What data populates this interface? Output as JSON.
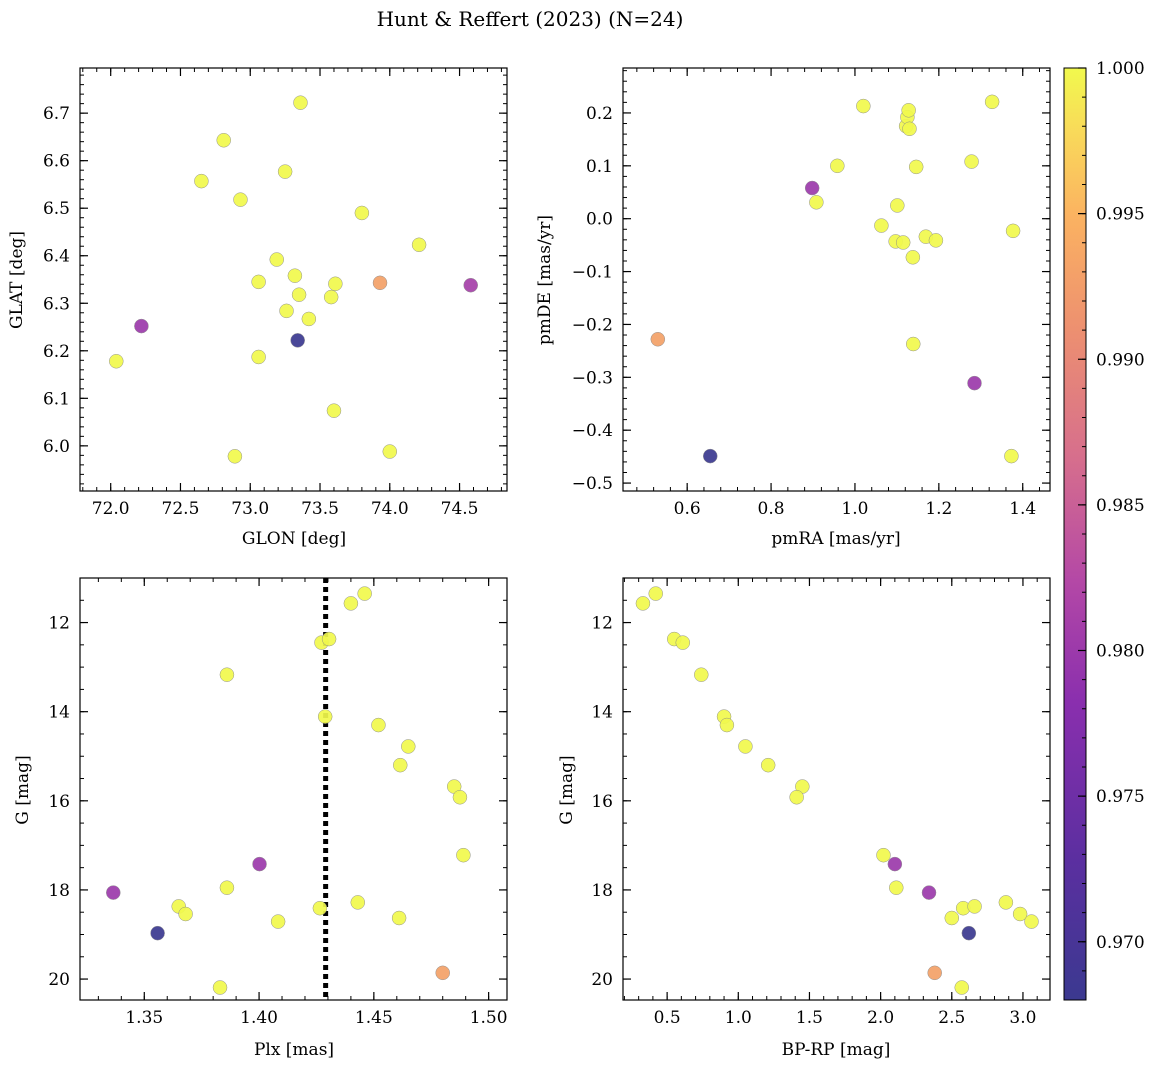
{
  "chart_data": {
    "type": "scatter",
    "title": "Hunt & Reffert (2023) (N=24)",
    "colorbar": {
      "colormap": "plasma",
      "min": 0.968,
      "max": 1.0,
      "ticks": [
        0.97,
        0.975,
        0.98,
        0.985,
        0.99,
        0.995,
        1.0
      ],
      "tick_labels": [
        "0.970",
        "0.975",
        "0.980",
        "0.985",
        "0.990",
        "0.995",
        "1.000"
      ]
    },
    "panels": [
      {
        "id": "sky",
        "xlabel": "GLON [deg]",
        "ylabel": "GLAT [deg]",
        "xlim": [
          71.78,
          74.84
        ],
        "ylim": [
          5.905,
          6.795
        ],
        "y_inverted": false,
        "xticks": [
          72.0,
          72.5,
          73.0,
          73.5,
          74.0,
          74.5
        ],
        "xtick_labels": [
          "72.0",
          "72.5",
          "73.0",
          "73.5",
          "74.0",
          "74.5"
        ],
        "yticks": [
          6.0,
          6.1,
          6.2,
          6.3,
          6.4,
          6.5,
          6.6,
          6.7
        ],
        "ytick_labels": [
          "6.0",
          "6.1",
          "6.2",
          "6.3",
          "6.4",
          "6.5",
          "6.6",
          "6.7"
        ],
        "points": [
          {
            "x": 72.04,
            "y": 6.178,
            "c": 1.0
          },
          {
            "x": 72.22,
            "y": 6.252,
            "c": 0.98
          },
          {
            "x": 72.65,
            "y": 6.557,
            "c": 1.0
          },
          {
            "x": 72.81,
            "y": 6.643,
            "c": 1.0
          },
          {
            "x": 72.89,
            "y": 5.978,
            "c": 1.0
          },
          {
            "x": 72.93,
            "y": 6.518,
            "c": 1.0
          },
          {
            "x": 73.06,
            "y": 6.187,
            "c": 1.0
          },
          {
            "x": 73.06,
            "y": 6.345,
            "c": 1.0
          },
          {
            "x": 73.19,
            "y": 6.392,
            "c": 1.0
          },
          {
            "x": 73.25,
            "y": 6.577,
            "c": 1.0
          },
          {
            "x": 73.26,
            "y": 6.284,
            "c": 1.0
          },
          {
            "x": 73.32,
            "y": 6.358,
            "c": 1.0
          },
          {
            "x": 73.34,
            "y": 6.222,
            "c": 0.968
          },
          {
            "x": 73.35,
            "y": 6.318,
            "c": 1.0
          },
          {
            "x": 73.36,
            "y": 6.722,
            "c": 1.0
          },
          {
            "x": 73.42,
            "y": 6.267,
            "c": 1.0
          },
          {
            "x": 73.58,
            "y": 6.313,
            "c": 1.0
          },
          {
            "x": 73.6,
            "y": 6.074,
            "c": 1.0
          },
          {
            "x": 73.61,
            "y": 6.341,
            "c": 1.0
          },
          {
            "x": 73.8,
            "y": 6.49,
            "c": 1.0
          },
          {
            "x": 73.93,
            "y": 6.343,
            "c": 0.993
          },
          {
            "x": 74.0,
            "y": 5.988,
            "c": 1.0
          },
          {
            "x": 74.21,
            "y": 6.423,
            "c": 1.0
          },
          {
            "x": 74.58,
            "y": 6.338,
            "c": 0.981
          }
        ]
      },
      {
        "id": "pm",
        "xlabel": "pmRA [mas/yr]",
        "ylabel": "pmDE [mas/yr]",
        "xlim": [
          0.447,
          1.465
        ],
        "ylim": [
          -0.515,
          0.285
        ],
        "y_inverted": false,
        "xticks": [
          0.6,
          0.8,
          1.0,
          1.2,
          1.4
        ],
        "xtick_labels": [
          "0.6",
          "0.8",
          "1.0",
          "1.2",
          "1.4"
        ],
        "yticks": [
          -0.5,
          -0.4,
          -0.3,
          -0.2,
          -0.1,
          0.0,
          0.1,
          0.2
        ],
        "ytick_labels": [
          "−0.5",
          "−0.4",
          "−0.3",
          "−0.2",
          "−0.1",
          "0.0",
          "0.1",
          "0.2"
        ],
        "points": [
          {
            "x": 0.53,
            "y": -0.228,
            "c": 0.993
          },
          {
            "x": 0.655,
            "y": -0.449,
            "c": 0.968
          },
          {
            "x": 0.898,
            "y": 0.058,
            "c": 0.98
          },
          {
            "x": 0.908,
            "y": 0.031,
            "c": 1.0
          },
          {
            "x": 0.958,
            "y": 0.1,
            "c": 1.0
          },
          {
            "x": 1.02,
            "y": 0.213,
            "c": 1.0
          },
          {
            "x": 1.063,
            "y": -0.013,
            "c": 1.0
          },
          {
            "x": 1.097,
            "y": -0.043,
            "c": 1.0
          },
          {
            "x": 1.101,
            "y": 0.025,
            "c": 1.0
          },
          {
            "x": 1.115,
            "y": -0.045,
            "c": 1.0
          },
          {
            "x": 1.122,
            "y": 0.175,
            "c": 1.0
          },
          {
            "x": 1.125,
            "y": 0.192,
            "c": 1.0
          },
          {
            "x": 1.128,
            "y": 0.205,
            "c": 1.0
          },
          {
            "x": 1.13,
            "y": 0.17,
            "c": 1.0
          },
          {
            "x": 1.138,
            "y": -0.073,
            "c": 1.0
          },
          {
            "x": 1.139,
            "y": -0.237,
            "c": 1.0
          },
          {
            "x": 1.146,
            "y": 0.098,
            "c": 1.0
          },
          {
            "x": 1.169,
            "y": -0.034,
            "c": 1.0
          },
          {
            "x": 1.193,
            "y": -0.041,
            "c": 1.0
          },
          {
            "x": 1.278,
            "y": 0.108,
            "c": 1.0
          },
          {
            "x": 1.285,
            "y": -0.311,
            "c": 0.98
          },
          {
            "x": 1.327,
            "y": 0.221,
            "c": 1.0
          },
          {
            "x": 1.373,
            "y": -0.449,
            "c": 1.0
          },
          {
            "x": 1.377,
            "y": -0.023,
            "c": 1.0
          }
        ]
      },
      {
        "id": "plx",
        "xlabel": "Plx [mas]",
        "ylabel": "G [mag]",
        "xlim": [
          1.322,
          1.508
        ],
        "ylim": [
          11.0,
          20.47
        ],
        "y_inverted": true,
        "vline": {
          "x": 1.429,
          "style": "dotted",
          "color": "#000000"
        },
        "xticks": [
          1.35,
          1.4,
          1.45,
          1.5
        ],
        "xtick_labels": [
          "1.35",
          "1.40",
          "1.45",
          "1.50"
        ],
        "yticks": [
          12,
          14,
          16,
          18,
          20
        ],
        "ytick_labels": [
          "12",
          "14",
          "16",
          "18",
          "20"
        ],
        "points": [
          {
            "x": 1.3365,
            "y": 18.06,
            "c": 0.98
          },
          {
            "x": 1.3558,
            "y": 18.97,
            "c": 0.968
          },
          {
            "x": 1.365,
            "y": 18.37,
            "c": 1.0
          },
          {
            "x": 1.368,
            "y": 18.54,
            "c": 1.0
          },
          {
            "x": 1.383,
            "y": 20.19,
            "c": 1.0
          },
          {
            "x": 1.386,
            "y": 13.17,
            "c": 1.0
          },
          {
            "x": 1.386,
            "y": 17.95,
            "c": 1.0
          },
          {
            "x": 1.4002,
            "y": 17.42,
            "c": 0.98
          },
          {
            "x": 1.4083,
            "y": 18.71,
            "c": 1.0
          },
          {
            "x": 1.4265,
            "y": 18.41,
            "c": 1.0
          },
          {
            "x": 1.4272,
            "y": 12.45,
            "c": 1.0
          },
          {
            "x": 1.4288,
            "y": 14.11,
            "c": 1.0
          },
          {
            "x": 1.4305,
            "y": 12.37,
            "c": 1.0
          },
          {
            "x": 1.44,
            "y": 11.57,
            "c": 1.0
          },
          {
            "x": 1.443,
            "y": 18.28,
            "c": 1.0
          },
          {
            "x": 1.446,
            "y": 11.35,
            "c": 1.0
          },
          {
            "x": 1.452,
            "y": 14.3,
            "c": 1.0
          },
          {
            "x": 1.461,
            "y": 18.63,
            "c": 1.0
          },
          {
            "x": 1.4615,
            "y": 15.2,
            "c": 1.0
          },
          {
            "x": 1.465,
            "y": 14.78,
            "c": 1.0
          },
          {
            "x": 1.48,
            "y": 19.86,
            "c": 0.993
          },
          {
            "x": 1.485,
            "y": 15.68,
            "c": 1.0
          },
          {
            "x": 1.4875,
            "y": 15.92,
            "c": 1.0
          },
          {
            "x": 1.489,
            "y": 17.22,
            "c": 1.0
          }
        ]
      },
      {
        "id": "cmd",
        "xlabel": "BP-RP [mag]",
        "ylabel": "G [mag]",
        "xlim": [
          0.19,
          3.19
        ],
        "ylim": [
          11.0,
          20.47
        ],
        "y_inverted": true,
        "xticks": [
          0.5,
          1.0,
          1.5,
          2.0,
          2.5,
          3.0
        ],
        "xtick_labels": [
          "0.5",
          "1.0",
          "1.5",
          "2.0",
          "2.5",
          "3.0"
        ],
        "yticks": [
          12,
          14,
          16,
          18,
          20
        ],
        "ytick_labels": [
          "12",
          "14",
          "16",
          "18",
          "20"
        ],
        "points": [
          {
            "x": 0.33,
            "y": 11.57,
            "c": 1.0
          },
          {
            "x": 0.42,
            "y": 11.35,
            "c": 1.0
          },
          {
            "x": 0.55,
            "y": 12.37,
            "c": 1.0
          },
          {
            "x": 0.61,
            "y": 12.45,
            "c": 1.0
          },
          {
            "x": 0.74,
            "y": 13.17,
            "c": 1.0
          },
          {
            "x": 0.9,
            "y": 14.11,
            "c": 1.0
          },
          {
            "x": 0.92,
            "y": 14.3,
            "c": 1.0
          },
          {
            "x": 1.05,
            "y": 14.78,
            "c": 1.0
          },
          {
            "x": 1.21,
            "y": 15.2,
            "c": 1.0
          },
          {
            "x": 1.45,
            "y": 15.68,
            "c": 1.0
          },
          {
            "x": 1.41,
            "y": 15.92,
            "c": 1.0
          },
          {
            "x": 2.02,
            "y": 17.22,
            "c": 1.0
          },
          {
            "x": 2.1,
            "y": 17.42,
            "c": 0.98
          },
          {
            "x": 2.11,
            "y": 17.95,
            "c": 1.0
          },
          {
            "x": 2.34,
            "y": 18.06,
            "c": 0.98
          },
          {
            "x": 2.5,
            "y": 18.63,
            "c": 1.0
          },
          {
            "x": 2.58,
            "y": 18.41,
            "c": 1.0
          },
          {
            "x": 2.62,
            "y": 18.97,
            "c": 0.968
          },
          {
            "x": 2.66,
            "y": 18.37,
            "c": 1.0
          },
          {
            "x": 2.88,
            "y": 18.28,
            "c": 1.0
          },
          {
            "x": 2.98,
            "y": 18.54,
            "c": 1.0
          },
          {
            "x": 3.06,
            "y": 18.71,
            "c": 1.0
          },
          {
            "x": 2.38,
            "y": 19.86,
            "c": 0.993
          },
          {
            "x": 2.57,
            "y": 20.19,
            "c": 1.0
          }
        ]
      }
    ]
  }
}
